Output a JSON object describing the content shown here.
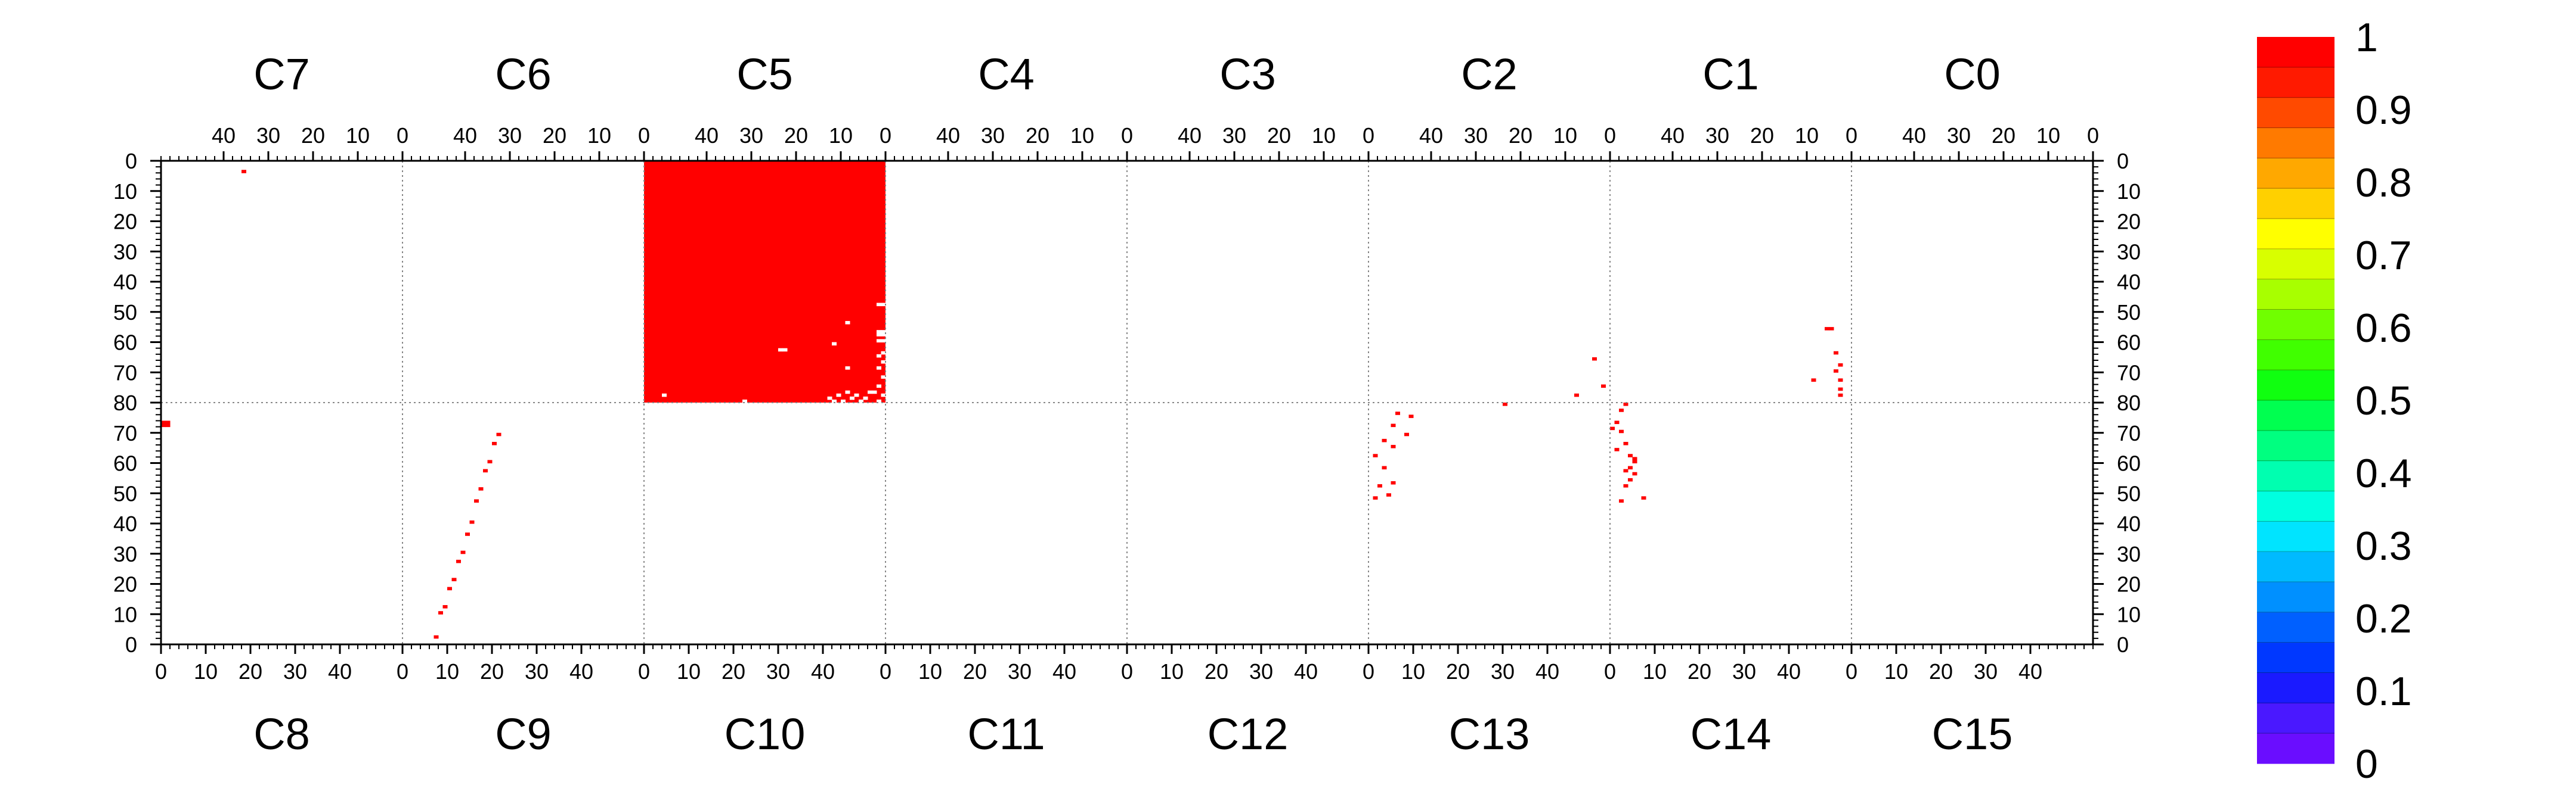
{
  "chart_data": {
    "type": "heatmap",
    "title": "",
    "xlabel": "",
    "ylabel": "",
    "grid": "dotted chip boundaries",
    "chips_top": [
      "C7",
      "C6",
      "C5",
      "C4",
      "C3",
      "C2",
      "C1",
      "C0"
    ],
    "chips_bottom": [
      "C8",
      "C9",
      "C10",
      "C11",
      "C12",
      "C13",
      "C14",
      "C15"
    ],
    "chip_columns": 54,
    "chip_rows": 80,
    "top_tick_labels": [
      "40",
      "30",
      "20",
      "10",
      "0"
    ],
    "bottom_tick_labels": [
      "0",
      "10",
      "20",
      "30",
      "40"
    ],
    "y_tick_labels_top_half": [
      "0",
      "10",
      "20",
      "30",
      "40",
      "50",
      "60",
      "70",
      "80"
    ],
    "y_tick_labels_bottom_half": [
      "70",
      "60",
      "50",
      "40",
      "30",
      "20",
      "10",
      "0"
    ],
    "colorbar": {
      "min": 0,
      "max": 1,
      "tick_labels": [
        "1",
        "0.9",
        "0.8",
        "0.7",
        "0.6",
        "0.5",
        "0.4",
        "0.3",
        "0.2",
        "0.1",
        "0"
      ],
      "colors_bottom_to_top": [
        "#6a0dff",
        "#4a18ff",
        "#1a1aff",
        "#0038ff",
        "#0060ff",
        "#0090ff",
        "#00baff",
        "#00e4ff",
        "#00ffe0",
        "#00ffb0",
        "#00ff80",
        "#00ff50",
        "#10ff10",
        "#40ff00",
        "#70ff00",
        "#a8ff00",
        "#d8ff00",
        "#ffff00",
        "#ffd000",
        "#ffa800",
        "#ff7a00",
        "#ff4a00",
        "#ff1a00",
        "#ff0000"
      ]
    },
    "cell_color": "#ff0000",
    "gap_color": "#ffffff",
    "blocks": [
      {
        "chip": "C5",
        "col_range": [
          0,
          53
        ],
        "row_range": [
          0,
          79
        ],
        "value": 1
      }
    ],
    "gaps": [
      {
        "chip": "C5",
        "col": 0,
        "row": 47
      },
      {
        "chip": "C5",
        "col": 1,
        "row": 47
      },
      {
        "chip": "C5",
        "col": 0,
        "row": 56
      },
      {
        "chip": "C5",
        "col": 1,
        "row": 56
      },
      {
        "chip": "C5",
        "col": 0,
        "row": 57
      },
      {
        "chip": "C5",
        "col": 1,
        "row": 57
      },
      {
        "chip": "C5",
        "col": 0,
        "row": 59
      },
      {
        "chip": "C5",
        "col": 1,
        "row": 59
      },
      {
        "chip": "C5",
        "col": 0,
        "row": 63
      },
      {
        "chip": "C5",
        "col": 1,
        "row": 64
      },
      {
        "chip": "C5",
        "col": 0,
        "row": 66
      },
      {
        "chip": "C5",
        "col": 1,
        "row": 68
      },
      {
        "chip": "C5",
        "col": 0,
        "row": 71
      },
      {
        "chip": "C5",
        "col": 1,
        "row": 74
      },
      {
        "chip": "C5",
        "col": 0,
        "row": 77
      },
      {
        "chip": "C5",
        "col": 1,
        "row": 79
      },
      {
        "chip": "C5",
        "col": 2,
        "row": 76
      },
      {
        "chip": "C5",
        "col": 3,
        "row": 76
      },
      {
        "chip": "C5",
        "col": 4,
        "row": 78
      },
      {
        "chip": "C5",
        "col": 5,
        "row": 79
      },
      {
        "chip": "C5",
        "col": 6,
        "row": 77
      },
      {
        "chip": "C5",
        "col": 7,
        "row": 78
      },
      {
        "chip": "C5",
        "col": 8,
        "row": 76
      },
      {
        "chip": "C5",
        "col": 9,
        "row": 79
      },
      {
        "chip": "C5",
        "col": 10,
        "row": 77
      },
      {
        "chip": "C5",
        "col": 11,
        "row": 79
      },
      {
        "chip": "C5",
        "col": 12,
        "row": 78
      },
      {
        "chip": "C5",
        "col": 11,
        "row": 60
      },
      {
        "chip": "C5",
        "col": 8,
        "row": 53
      },
      {
        "chip": "C5",
        "col": 8,
        "row": 68
      },
      {
        "chip": "C5",
        "col": 22,
        "row": 62
      },
      {
        "chip": "C5",
        "col": 23,
        "row": 62
      },
      {
        "chip": "C5",
        "col": 31,
        "row": 79
      },
      {
        "chip": "C5",
        "col": 49,
        "row": 77
      }
    ],
    "pixels": [
      {
        "chip": "C7",
        "col": 35,
        "row": 3,
        "value": 1
      },
      {
        "chip": "C8",
        "col": 0,
        "row": 72,
        "value": 1
      },
      {
        "chip": "C8",
        "col": 1,
        "row": 72,
        "value": 1
      },
      {
        "chip": "C8",
        "col": 0,
        "row": 73,
        "value": 1
      },
      {
        "chip": "C8",
        "col": 1,
        "row": 73,
        "value": 1
      },
      {
        "chip": "C9",
        "col": 7,
        "row": 2,
        "value": 1
      },
      {
        "chip": "C9",
        "col": 8,
        "row": 10,
        "value": 1
      },
      {
        "chip": "C9",
        "col": 9,
        "row": 12,
        "value": 1
      },
      {
        "chip": "C9",
        "col": 10,
        "row": 18,
        "value": 1
      },
      {
        "chip": "C9",
        "col": 11,
        "row": 21,
        "value": 1
      },
      {
        "chip": "C9",
        "col": 12,
        "row": 27,
        "value": 1
      },
      {
        "chip": "C9",
        "col": 13,
        "row": 30,
        "value": 1
      },
      {
        "chip": "C9",
        "col": 14,
        "row": 36,
        "value": 1
      },
      {
        "chip": "C9",
        "col": 15,
        "row": 40,
        "value": 1
      },
      {
        "chip": "C9",
        "col": 16,
        "row": 47,
        "value": 1
      },
      {
        "chip": "C9",
        "col": 17,
        "row": 51,
        "value": 1
      },
      {
        "chip": "C9",
        "col": 18,
        "row": 57,
        "value": 1
      },
      {
        "chip": "C9",
        "col": 19,
        "row": 60,
        "value": 1
      },
      {
        "chip": "C9",
        "col": 20,
        "row": 66,
        "value": 1
      },
      {
        "chip": "C9",
        "col": 21,
        "row": 69,
        "value": 1
      },
      {
        "chip": "C13",
        "col": 30,
        "row": 79,
        "value": 1
      },
      {
        "chip": "C2",
        "col": 3,
        "row": 65,
        "value": 1
      },
      {
        "chip": "C1",
        "col": 4,
        "row": 55,
        "value": 1
      },
      {
        "chip": "C1",
        "col": 5,
        "row": 55,
        "value": 1
      },
      {
        "chip": "C1",
        "col": 3,
        "row": 63,
        "value": 1
      },
      {
        "chip": "C1",
        "col": 2,
        "row": 67,
        "value": 1
      },
      {
        "chip": "C1",
        "col": 3,
        "row": 69,
        "value": 1
      },
      {
        "chip": "C1",
        "col": 2,
        "row": 72,
        "value": 1
      },
      {
        "chip": "C1",
        "col": 8,
        "row": 72,
        "value": 1
      },
      {
        "chip": "C1",
        "col": 2,
        "row": 75,
        "value": 1
      },
      {
        "chip": "C1",
        "col": 2,
        "row": 77,
        "value": 1
      },
      {
        "chip": "C2",
        "col": 1,
        "row": 74,
        "value": 1
      },
      {
        "chip": "C2",
        "col": 7,
        "row": 77,
        "value": 1
      },
      {
        "chip": "C14",
        "col": 3,
        "row": 79,
        "value": 1
      },
      {
        "chip": "C14",
        "col": 2,
        "row": 77,
        "value": 1
      },
      {
        "chip": "C14",
        "col": 1,
        "row": 73,
        "value": 1
      },
      {
        "chip": "C14",
        "col": 2,
        "row": 70,
        "value": 1
      },
      {
        "chip": "C14",
        "col": 3,
        "row": 66,
        "value": 1
      },
      {
        "chip": "C14",
        "col": 4,
        "row": 62,
        "value": 1
      },
      {
        "chip": "C14",
        "col": 5,
        "row": 60,
        "value": 1
      },
      {
        "chip": "C14",
        "col": 4,
        "row": 58,
        "value": 1
      },
      {
        "chip": "C14",
        "col": 3,
        "row": 57,
        "value": 1
      },
      {
        "chip": "C14",
        "col": 5,
        "row": 56,
        "value": 1
      },
      {
        "chip": "C14",
        "col": 4,
        "row": 54,
        "value": 1
      },
      {
        "chip": "C14",
        "col": 3,
        "row": 52,
        "value": 1
      },
      {
        "chip": "C14",
        "col": 7,
        "row": 48,
        "value": 1
      },
      {
        "chip": "C14",
        "col": 2,
        "row": 47,
        "value": 1
      },
      {
        "chip": "C14",
        "col": 0,
        "row": 71,
        "value": 1
      },
      {
        "chip": "C14",
        "col": 1,
        "row": 64,
        "value": 1
      },
      {
        "chip": "C13",
        "col": 6,
        "row": 76,
        "value": 1
      },
      {
        "chip": "C13",
        "col": 9,
        "row": 75,
        "value": 1
      },
      {
        "chip": "C13",
        "col": 5,
        "row": 72,
        "value": 1
      },
      {
        "chip": "C13",
        "col": 8,
        "row": 69,
        "value": 1
      },
      {
        "chip": "C13",
        "col": 3,
        "row": 67,
        "value": 1
      },
      {
        "chip": "C13",
        "col": 5,
        "row": 65,
        "value": 1
      },
      {
        "chip": "C13",
        "col": 1,
        "row": 62,
        "value": 1
      },
      {
        "chip": "C13",
        "col": 3,
        "row": 58,
        "value": 1
      },
      {
        "chip": "C13",
        "col": 5,
        "row": 53,
        "value": 1
      },
      {
        "chip": "C13",
        "col": 2,
        "row": 52,
        "value": 1
      },
      {
        "chip": "C13",
        "col": 4,
        "row": 49,
        "value": 1
      },
      {
        "chip": "C13",
        "col": 1,
        "row": 48,
        "value": 1
      },
      {
        "chip": "C14",
        "col": 5,
        "row": 61,
        "value": 1
      }
    ]
  }
}
